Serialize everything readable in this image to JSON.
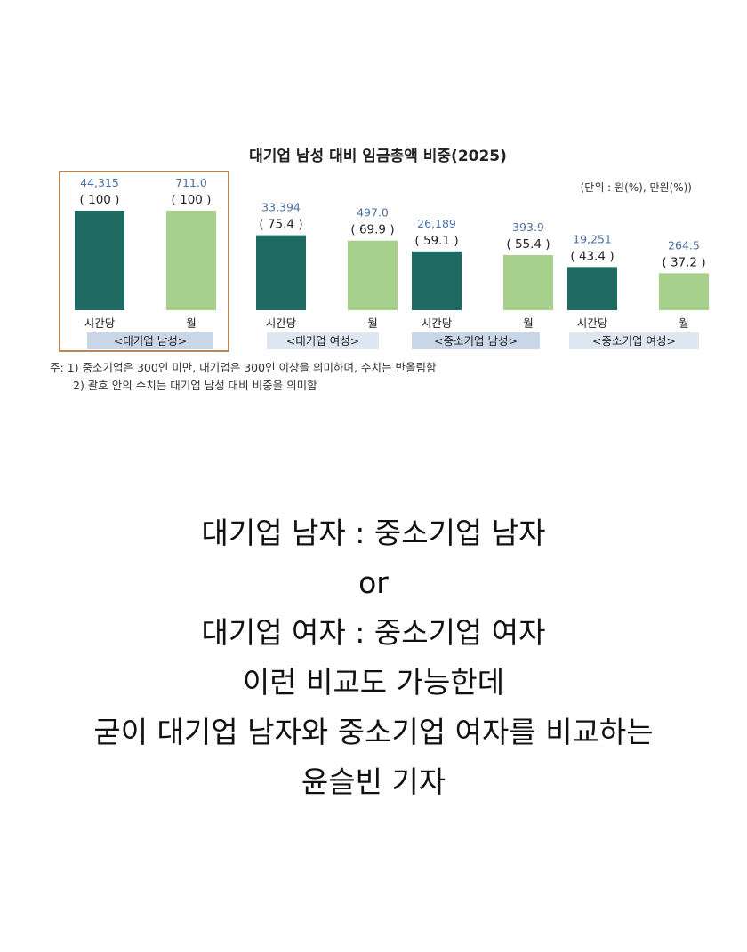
{
  "chart_data": {
    "type": "bar",
    "title": "대기업 남성 대비 임금총액 비중(2025)",
    "unit_note": "(단위 : 원(%), 만원(%))",
    "groups": [
      {
        "label": "<대기업 남성>",
        "highlighted": true,
        "hourly": {
          "label": "시간당",
          "value": 44315,
          "value_text": "44,315",
          "pct_text": "( 100 )"
        },
        "monthly": {
          "label": "월",
          "value": 711.0,
          "value_text": "711.0",
          "pct_text": "( 100 )"
        }
      },
      {
        "label": "<대기업 여성>",
        "highlighted": false,
        "hourly": {
          "label": "시간당",
          "value": 33394,
          "value_text": "33,394",
          "pct_text": "( 75.4 )"
        },
        "monthly": {
          "label": "월",
          "value": 497.0,
          "value_text": "497.0",
          "pct_text": "( 69.9 )"
        }
      },
      {
        "label": "<중소기업 남성>",
        "highlighted": false,
        "hourly": {
          "label": "시간당",
          "value": 26189,
          "value_text": "26,189",
          "pct_text": "( 59.1 )"
        },
        "monthly": {
          "label": "월",
          "value": 393.9,
          "value_text": "393.9",
          "pct_text": "( 55.4 )"
        }
      },
      {
        "label": "<중소기업 여성>",
        "highlighted": false,
        "hourly": {
          "label": "시간당",
          "value": 19251,
          "value_text": "19,251",
          "pct_text": "( 43.4 )"
        },
        "monthly": {
          "label": "월",
          "value": 264.5,
          "value_text": "264.5",
          "pct_text": "( 37.2 )"
        }
      }
    ],
    "notes": [
      "주: 1) 중소기업은 300인 미만, 대기업은 300인 이상을 의미하며, 수치는 반올림함",
      "2) 괄호 안의 수치는 대기업 남성 대비 비중을 의미함"
    ],
    "colors": {
      "hourly": "#1f6b62",
      "monthly": "#a8d08d",
      "value_text": "#4a6fa5",
      "group_label_bg": "#c9d6e8",
      "group_label_bg_alt": "#dde6f1",
      "highlight_border": "#b9855a"
    }
  },
  "caption": {
    "lines": [
      "대기업 남자 : 중소기업 남자",
      "or",
      "대기업 여자 : 중소기업 여자",
      "이런 비교도 가능한데",
      "굳이 대기업 남자와 중소기업 여자를 비교하는",
      "윤슬빈 기자"
    ]
  }
}
